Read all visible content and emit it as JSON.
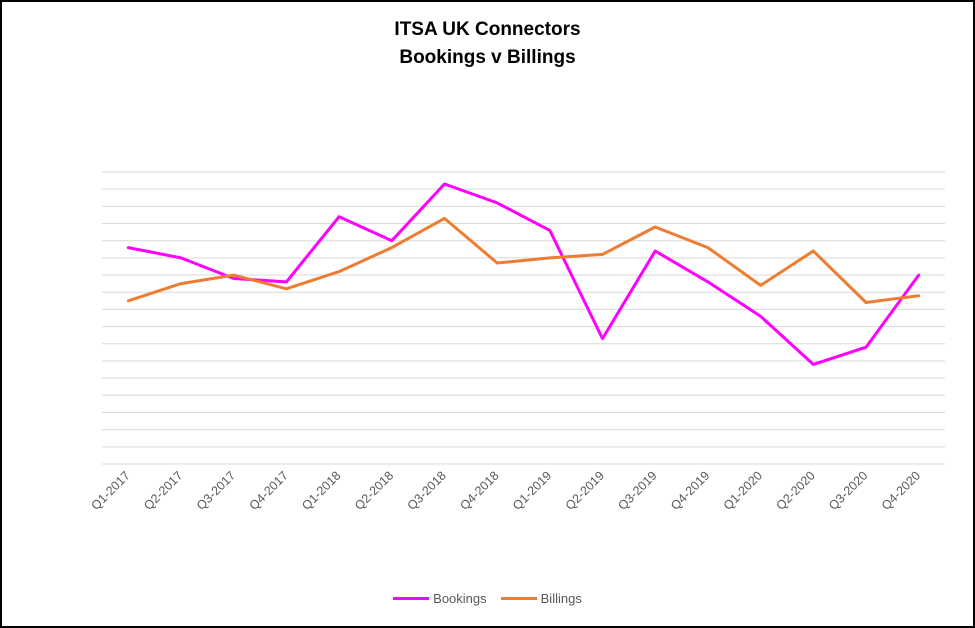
{
  "chart_data": {
    "type": "line",
    "title": "ITSA UK Connectors",
    "subtitle": "Bookings v Billings",
    "categories": [
      "Q1-2017",
      "Q2-2017",
      "Q3-2017",
      "Q4-2017",
      "Q1-2018",
      "Q2-2018",
      "Q3-2018",
      "Q4-2018",
      "Q1-2019",
      "Q2-2019",
      "Q3-2019",
      "Q4-2019",
      "Q1-2020",
      "Q2-2020",
      "Q3-2020",
      "Q4-2020"
    ],
    "ylim": [
      0,
      17
    ],
    "grid": true,
    "legend_position": "bottom",
    "series": [
      {
        "name": "Bookings",
        "color": "#FF00FF",
        "values": [
          12.6,
          12.0,
          10.8,
          10.6,
          14.4,
          13.0,
          16.3,
          15.2,
          13.6,
          7.3,
          12.4,
          10.6,
          8.6,
          5.8,
          6.8,
          11.0
        ]
      },
      {
        "name": "Billings",
        "color": "#ED7D31",
        "values": [
          9.5,
          10.5,
          11.0,
          10.2,
          11.2,
          12.6,
          14.3,
          11.7,
          12.0,
          12.2,
          13.8,
          12.6,
          10.4,
          12.4,
          9.4,
          9.8
        ]
      }
    ]
  }
}
